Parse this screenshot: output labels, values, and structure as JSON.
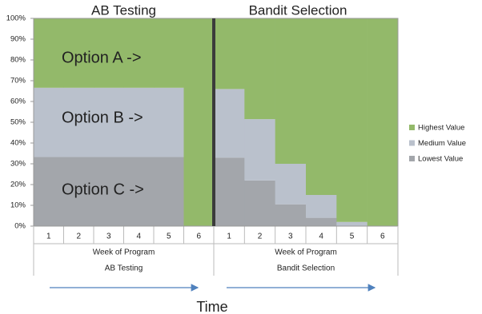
{
  "chart_data": {
    "type": "bar",
    "stacked": true,
    "groups": [
      {
        "name": "AB Testing",
        "categories": [
          "1",
          "2",
          "3",
          "4",
          "5",
          "6"
        ]
      },
      {
        "name": "Bandit Selection",
        "categories": [
          "1",
          "2",
          "3",
          "4",
          "5",
          "6"
        ]
      }
    ],
    "x_label": "Week of Program",
    "x_title": "Time",
    "series": [
      {
        "name": "Lowest Value",
        "color": "#a3a6ab",
        "values": [
          33.3,
          33.3,
          33.3,
          33.3,
          33.3,
          0,
          33,
          22,
          10.5,
          4,
          0,
          0
        ]
      },
      {
        "name": "Medium Value",
        "color": "#bac1cc",
        "values": [
          33.3,
          33.3,
          33.3,
          33.3,
          33.3,
          0,
          33,
          29.5,
          19.5,
          11,
          2,
          0
        ]
      },
      {
        "name": "Highest Value",
        "color": "#93b96a",
        "values": [
          33.4,
          33.4,
          33.4,
          33.4,
          33.4,
          100,
          34,
          48.5,
          70,
          85,
          98,
          100
        ]
      }
    ],
    "annotations": [
      "Option A ->",
      "Option B ->",
      "Option C ->"
    ],
    "ylim": [
      0,
      100
    ],
    "yticks": [
      {
        "value": 0,
        "label": "0%"
      },
      {
        "value": 10,
        "label": "10%"
      },
      {
        "value": 20,
        "label": "20%"
      },
      {
        "value": 30,
        "label": "30%"
      },
      {
        "value": 40,
        "label": "40%"
      },
      {
        "value": 50,
        "label": "50%"
      },
      {
        "value": 60,
        "label": "60%"
      },
      {
        "value": 70,
        "label": "70%"
      },
      {
        "value": 80,
        "label": "80%"
      },
      {
        "value": 90,
        "label": "90%"
      },
      {
        "value": 100,
        "label": "100%"
      }
    ]
  }
}
